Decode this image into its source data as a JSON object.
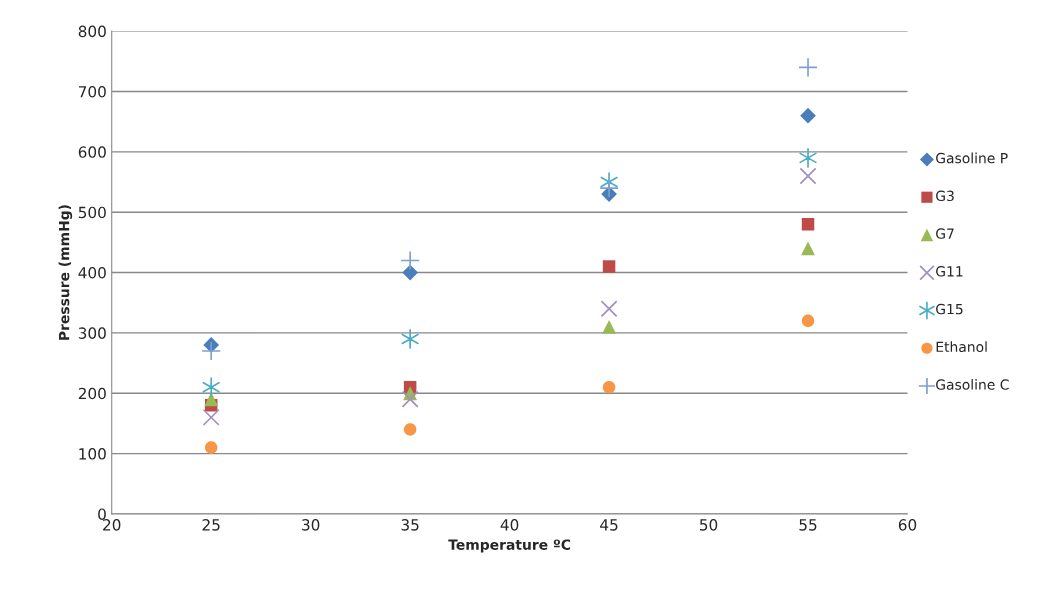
{
  "chart_data": {
    "type": "scatter",
    "xlabel": "Temperature ºC",
    "ylabel": "Pressure (mmHg)",
    "x": [
      25,
      35,
      45,
      55
    ],
    "series": [
      {
        "name": "Gasoline P",
        "color": "#4a7ebb",
        "marker": "diamond",
        "values": [
          280,
          400,
          530,
          660
        ]
      },
      {
        "name": "G3",
        "color": "#be4b48",
        "marker": "square",
        "values": [
          180,
          210,
          410,
          480
        ]
      },
      {
        "name": "G7",
        "color": "#98b954",
        "marker": "triangle",
        "values": [
          190,
          200,
          310,
          440
        ]
      },
      {
        "name": "G11",
        "color": "#a08fc0",
        "marker": "x",
        "values": [
          160,
          190,
          340,
          560
        ]
      },
      {
        "name": "G15",
        "color": "#4bacc6",
        "marker": "cross",
        "values": [
          210,
          290,
          550,
          590
        ]
      },
      {
        "name": "Ethanol",
        "color": "#f79646",
        "marker": "circle",
        "values": [
          110,
          140,
          210,
          320
        ]
      },
      {
        "name": "Gasoline C",
        "color": "#7f9fd0",
        "marker": "plus",
        "values": [
          270,
          420,
          540,
          740
        ]
      }
    ],
    "xlim": [
      20,
      60
    ],
    "xticks": [
      20,
      25,
      30,
      35,
      40,
      45,
      50,
      55,
      60
    ],
    "ylim": [
      0,
      800
    ],
    "yticks": [
      0,
      100,
      200,
      300,
      400,
      500,
      600,
      700,
      800
    ],
    "grid": "y",
    "legend": "right"
  }
}
